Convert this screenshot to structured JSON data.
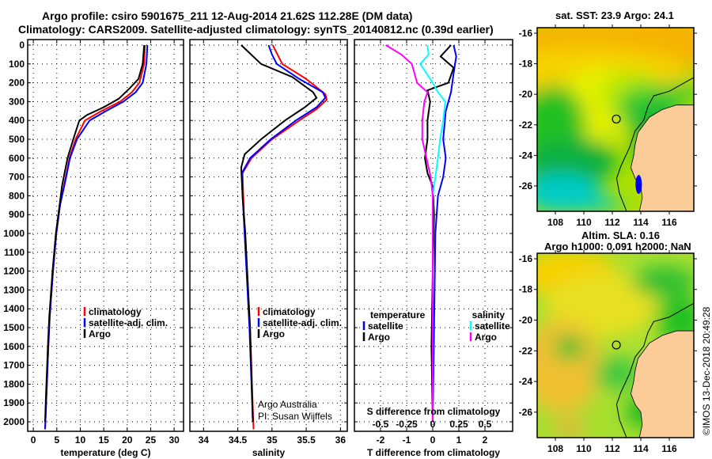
{
  "header": {
    "title_line1": "Argo profile: csiro 5901675_211 12-Aug-2014 21.62S 112.28E (DM data)",
    "title_line2": "Climatology: CARS2009. Satellite-adjusted climatology: synTS_20140812.nc (0.39d earlier)"
  },
  "colors": {
    "climatology": "#ff0000",
    "satellite": "#0000ff",
    "argo": "#000000",
    "sal_satellite": "#00ffff",
    "sal_argo": "#ff00ff"
  },
  "chart_data": [
    {
      "type": "line",
      "id": "temperature",
      "xlabel": "temperature (deg C)",
      "xlim": [
        -1.2,
        32
      ],
      "xticks": [
        0,
        5,
        10,
        15,
        20,
        25,
        30
      ],
      "ylim": [
        -29,
        2050
      ],
      "yticks": [
        0,
        100,
        200,
        300,
        400,
        500,
        600,
        700,
        800,
        900,
        1000,
        1100,
        1200,
        1300,
        1400,
        1500,
        1600,
        1700,
        1800,
        1900,
        2000
      ],
      "grid": true,
      "legend": {
        "placement": "center-right",
        "entries": [
          "climatology",
          "satellite-adj. clim.",
          "Argo"
        ]
      },
      "series": [
        {
          "name": "climatology",
          "color": "#ff0000",
          "points": [
            [
              0,
              23.8
            ],
            [
              100,
              23.6
            ],
            [
              200,
              22.6
            ],
            [
              250,
              21
            ],
            [
              300,
              18.5
            ],
            [
              350,
              14.5
            ],
            [
              400,
              11
            ],
            [
              500,
              9.0
            ],
            [
              600,
              7.7
            ],
            [
              700,
              6.9
            ],
            [
              850,
              5.7
            ],
            [
              1000,
              4.9
            ],
            [
              1200,
              4.2
            ],
            [
              1440,
              3.5
            ],
            [
              1600,
              3.2
            ],
            [
              1860,
              2.8
            ],
            [
              2040,
              2.5
            ]
          ]
        },
        {
          "name": "satellite-adj. clim.",
          "color": "#0000ff",
          "points": [
            [
              0,
              24.3
            ],
            [
              100,
              24.1
            ],
            [
              200,
              23.3
            ],
            [
              250,
              21.8
            ],
            [
              300,
              19.2
            ],
            [
              350,
              15.5
            ],
            [
              400,
              12
            ],
            [
              500,
              9.3
            ],
            [
              600,
              7.8
            ],
            [
              700,
              7.0
            ],
            [
              850,
              5.7
            ],
            [
              1000,
              4.9
            ],
            [
              1200,
              4.2
            ],
            [
              1440,
              3.5
            ],
            [
              1600,
              3.2
            ],
            [
              1860,
              2.8
            ],
            [
              2040,
              2.5
            ]
          ]
        },
        {
          "name": "Argo",
          "color": "#000000",
          "points": [
            [
              0,
              23.6
            ],
            [
              100,
              23.3
            ],
            [
              180,
              22.4
            ],
            [
              230,
              20.5
            ],
            [
              285,
              18.2
            ],
            [
              330,
              15
            ],
            [
              370,
              11.5
            ],
            [
              400,
              9.8
            ],
            [
              500,
              8.5
            ],
            [
              600,
              7.3
            ],
            [
              660,
              6.8
            ],
            [
              750,
              6.1
            ],
            [
              850,
              5.6
            ],
            [
              1000,
              4.8
            ],
            [
              1200,
              4.1
            ],
            [
              1440,
              3.4
            ],
            [
              1600,
              3.1
            ],
            [
              1860,
              2.7
            ],
            [
              2000,
              2.5
            ]
          ]
        }
      ]
    },
    {
      "type": "line",
      "id": "salinity",
      "xlabel": "salinity",
      "xlim": [
        33.8,
        36.1
      ],
      "xticks": [
        34,
        34.5,
        35,
        35.5,
        36
      ],
      "ylim": [
        -29,
        2050
      ],
      "yticks": [
        0,
        100,
        200,
        300,
        400,
        500,
        600,
        700,
        800,
        900,
        1000,
        1100,
        1200,
        1300,
        1400,
        1500,
        1600,
        1700,
        1800,
        1900,
        2000
      ],
      "grid": true,
      "legend": {
        "placement": "center-right",
        "entries": [
          "climatology",
          "satellite-adj. clim.",
          "Argo"
        ]
      },
      "annotation": [
        "Argo Australia",
        "PI: Susan Wijffels"
      ],
      "series": [
        {
          "name": "climatology",
          "color": "#ff0000",
          "points": [
            [
              0,
              35.01
            ],
            [
              100,
              35.15
            ],
            [
              180,
              35.5
            ],
            [
              260,
              35.78
            ],
            [
              290,
              35.8
            ],
            [
              340,
              35.65
            ],
            [
              400,
              35.4
            ],
            [
              500,
              35.0
            ],
            [
              600,
              34.7
            ],
            [
              680,
              34.57
            ],
            [
              800,
              34.58
            ],
            [
              1000,
              34.6
            ],
            [
              1500,
              34.68
            ],
            [
              2040,
              34.73
            ]
          ]
        },
        {
          "name": "satellite-adj. clim.",
          "color": "#0000ff",
          "points": [
            [
              0,
              34.95
            ],
            [
              50,
              35.0
            ],
            [
              100,
              35.07
            ],
            [
              180,
              35.4
            ],
            [
              250,
              35.74
            ],
            [
              280,
              35.78
            ],
            [
              330,
              35.65
            ],
            [
              400,
              35.35
            ],
            [
              500,
              34.98
            ],
            [
              600,
              34.68
            ],
            [
              680,
              34.56
            ],
            [
              800,
              34.57
            ],
            [
              1000,
              34.6
            ],
            [
              1500,
              34.67
            ],
            [
              2000,
              34.72
            ]
          ]
        },
        {
          "name": "Argo",
          "color": "#000000",
          "points": [
            [
              0,
              34.55
            ],
            [
              100,
              34.84
            ],
            [
              170,
              35.3
            ],
            [
              250,
              35.6
            ],
            [
              280,
              35.65
            ],
            [
              330,
              35.48
            ],
            [
              400,
              35.19
            ],
            [
              500,
              34.84
            ],
            [
              580,
              34.6
            ],
            [
              650,
              34.55
            ],
            [
              800,
              34.57
            ],
            [
              1000,
              34.61
            ],
            [
              1500,
              34.68
            ],
            [
              2000,
              34.72
            ]
          ]
        }
      ]
    },
    {
      "type": "line",
      "id": "differences",
      "xlabel": "T difference from climatology",
      "xlabel2": "S difference from climatology",
      "xlim": [
        -3.0,
        3.06
      ],
      "xticks": [
        -2,
        -1,
        0,
        1,
        2
      ],
      "xticks2": [
        -0.5,
        -0.25,
        0,
        0.25,
        0.5
      ],
      "xtick2_labels": [
        "-0.5",
        "-0.25",
        "0",
        "0.25",
        "0.5"
      ],
      "s_to_t_scale": 4,
      "ylim": [
        -29,
        2050
      ],
      "grid": true,
      "legend_temperature": {
        "heading": "temperature",
        "entries": [
          "satellite",
          "Argo"
        ]
      },
      "legend_salinity": {
        "heading": "salinity",
        "entries": [
          "satellite",
          "Argo"
        ]
      },
      "series": [
        {
          "name": "T satellite",
          "color": "#0000ff",
          "units": "T",
          "points": [
            [
              0,
              0.8
            ],
            [
              60,
              0.9
            ],
            [
              150,
              0.8
            ],
            [
              250,
              0.7
            ],
            [
              350,
              0.5
            ],
            [
              500,
              0.4
            ],
            [
              600,
              0.5
            ],
            [
              700,
              0.4
            ],
            [
              800,
              0.2
            ],
            [
              1000,
              0.1
            ],
            [
              1500,
              0.05
            ],
            [
              2000,
              0
            ]
          ]
        },
        {
          "name": "T Argo",
          "color": "#000000",
          "units": "T",
          "points": [
            [
              0,
              0.7
            ],
            [
              60,
              0.3
            ],
            [
              120,
              0.8
            ],
            [
              200,
              0.6
            ],
            [
              240,
              -0.2
            ],
            [
              300,
              -0.1
            ],
            [
              400,
              -0.2
            ],
            [
              500,
              -0.2
            ],
            [
              600,
              -0.3
            ],
            [
              680,
              -0.2
            ],
            [
              750,
              0
            ],
            [
              900,
              0.05
            ],
            [
              1200,
              0
            ],
            [
              1600,
              -0.05
            ],
            [
              2000,
              0
            ]
          ]
        },
        {
          "name": "S satellite",
          "color": "#00ffff",
          "units": "S",
          "points": [
            [
              0,
              -0.05
            ],
            [
              50,
              -0.04
            ],
            [
              100,
              -0.12
            ],
            [
              200,
              0
            ],
            [
              250,
              0.05
            ],
            [
              300,
              0.12
            ],
            [
              400,
              0.1
            ],
            [
              500,
              0.07
            ],
            [
              600,
              0.05
            ],
            [
              800,
              0
            ],
            [
              2000,
              0
            ]
          ]
        },
        {
          "name": "S Argo",
          "color": "#ff00ff",
          "units": "S",
          "points": [
            [
              0,
              -0.45
            ],
            [
              50,
              -0.3
            ],
            [
              100,
              -0.2
            ],
            [
              200,
              -0.15
            ],
            [
              250,
              -0.05
            ],
            [
              300,
              -0.08
            ],
            [
              400,
              -0.1
            ],
            [
              500,
              -0.1
            ],
            [
              600,
              -0.06
            ],
            [
              700,
              -0.02
            ],
            [
              800,
              0
            ],
            [
              2000,
              0
            ]
          ]
        }
      ]
    }
  ],
  "maps": {
    "sst_title": "sat. SST: 23.9 Argo: 24.1",
    "sla_title1": "Altim. SLA: 0.16",
    "sla_title2": "Argo h1000: 0.091 h2000: NaN",
    "lon_ticks": [
      108,
      110,
      112,
      114,
      116
    ],
    "lat_ticks": [
      -16,
      -18,
      -20,
      -22,
      -24,
      -26
    ],
    "lat_tick_labels": [
      "-16",
      "-18",
      "-20",
      "-22",
      "-24",
      "-26"
    ],
    "float_position": [
      112.28,
      -21.62
    ]
  },
  "footer": {
    "stamp": "©IMOS 13-Dec-2018 20:49:28"
  }
}
